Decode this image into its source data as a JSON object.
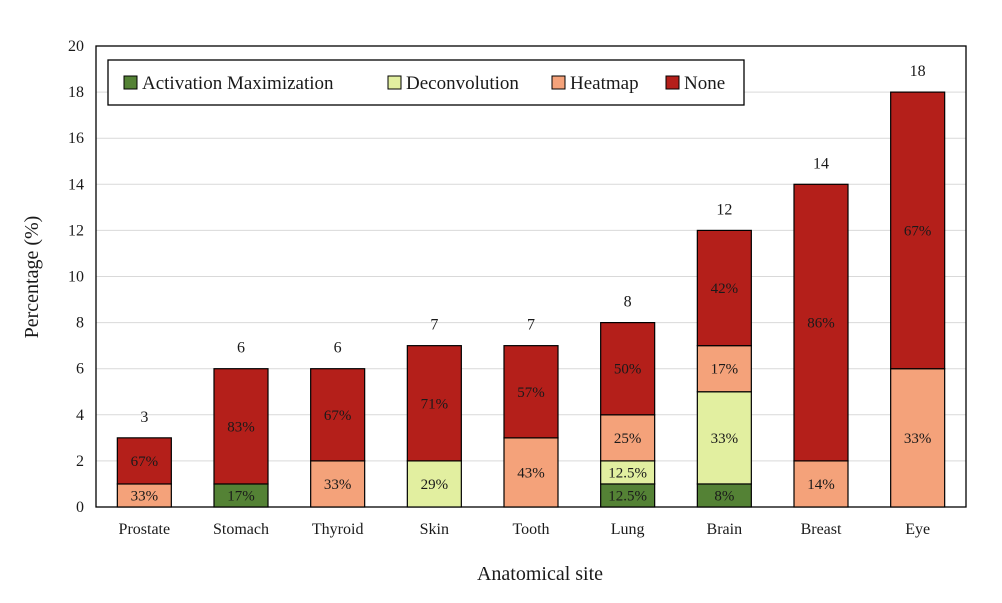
{
  "chart_data": {
    "type": "bar",
    "stacked": true,
    "title": "",
    "xlabel": "Anatomical site",
    "ylabel": "Percentage (%)",
    "ylim": [
      0,
      20
    ],
    "yticks": [
      0,
      2,
      4,
      6,
      8,
      10,
      12,
      14,
      16,
      18,
      20
    ],
    "grid": "horizontal",
    "legend_position": "top-left",
    "categories": [
      "Prostate",
      "Stomach",
      "Thyroid",
      "Skin",
      "Tooth",
      "Lung",
      "Brain",
      "Breast",
      "Eye"
    ],
    "totals": [
      3,
      6,
      6,
      7,
      7,
      8,
      12,
      14,
      18
    ],
    "series": [
      {
        "name": "Activation Maximization",
        "color": "#548235",
        "values": [
          0,
          1,
          0,
          0,
          0,
          1,
          1,
          0,
          0
        ],
        "labels": [
          "",
          "17%",
          "",
          "",
          "",
          "12.5%",
          "8%",
          "",
          ""
        ]
      },
      {
        "name": "Deconvolution",
        "color": "#e2efa0",
        "values": [
          0,
          0,
          0,
          2,
          0,
          1,
          4,
          0,
          0
        ],
        "labels": [
          "",
          "",
          "",
          "29%",
          "",
          "12.5%",
          "33%",
          "",
          ""
        ]
      },
      {
        "name": "Heatmap",
        "color": "#f4a27a",
        "values": [
          1,
          0,
          2,
          0,
          3,
          2,
          2,
          2,
          6
        ],
        "labels": [
          "33%",
          "",
          "33%",
          "",
          "43%",
          "25%",
          "17%",
          "14%",
          "33%"
        ]
      },
      {
        "name": "None",
        "color": "#b41f1a",
        "values": [
          2,
          5,
          4,
          5,
          4,
          4,
          5,
          12,
          12
        ],
        "labels": [
          "67%",
          "83%",
          "67%",
          "71%",
          "57%",
          "50%",
          "42%",
          "86%",
          "67%"
        ]
      }
    ]
  }
}
